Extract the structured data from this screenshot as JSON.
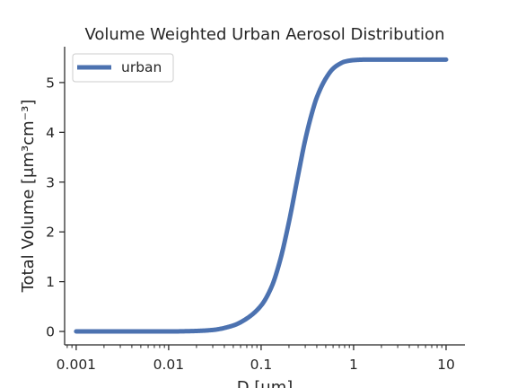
{
  "chart_data": {
    "type": "line",
    "title": "Volume Weighted Urban Aerosol Distribution",
    "xlabel": "D  [μm]",
    "ylabel": "Total Volume [μm³cm⁻³]",
    "xscale": "log",
    "xlim": [
      0.00075,
      16
    ],
    "ylim": [
      -0.27,
      5.72
    ],
    "xticks": [
      0.001,
      0.01,
      0.1,
      1,
      10
    ],
    "xtick_labels": [
      "0.001",
      "0.01",
      "0.1",
      "1",
      "10"
    ],
    "yticks": [
      0,
      1,
      2,
      3,
      4,
      5
    ],
    "ytick_labels": [
      "0",
      "1",
      "2",
      "3",
      "4",
      "5"
    ],
    "grid": false,
    "legend_position": "top-left",
    "series": [
      {
        "name": "urban",
        "color": "#4c72b0",
        "x": [
          0.001,
          0.002,
          0.005,
          0.01,
          0.02,
          0.03,
          0.05,
          0.07,
          0.1,
          0.13,
          0.16,
          0.2,
          0.25,
          0.3,
          0.35,
          0.4,
          0.5,
          0.6,
          0.7,
          0.8,
          1.0,
          1.3,
          2.0,
          5.0,
          10.0
        ],
        "y": [
          0.0,
          0.0,
          0.0,
          0.0,
          0.01,
          0.03,
          0.12,
          0.26,
          0.52,
          0.9,
          1.42,
          2.2,
          3.12,
          3.85,
          4.35,
          4.7,
          5.08,
          5.28,
          5.37,
          5.42,
          5.45,
          5.46,
          5.46,
          5.46,
          5.46
        ]
      }
    ]
  }
}
